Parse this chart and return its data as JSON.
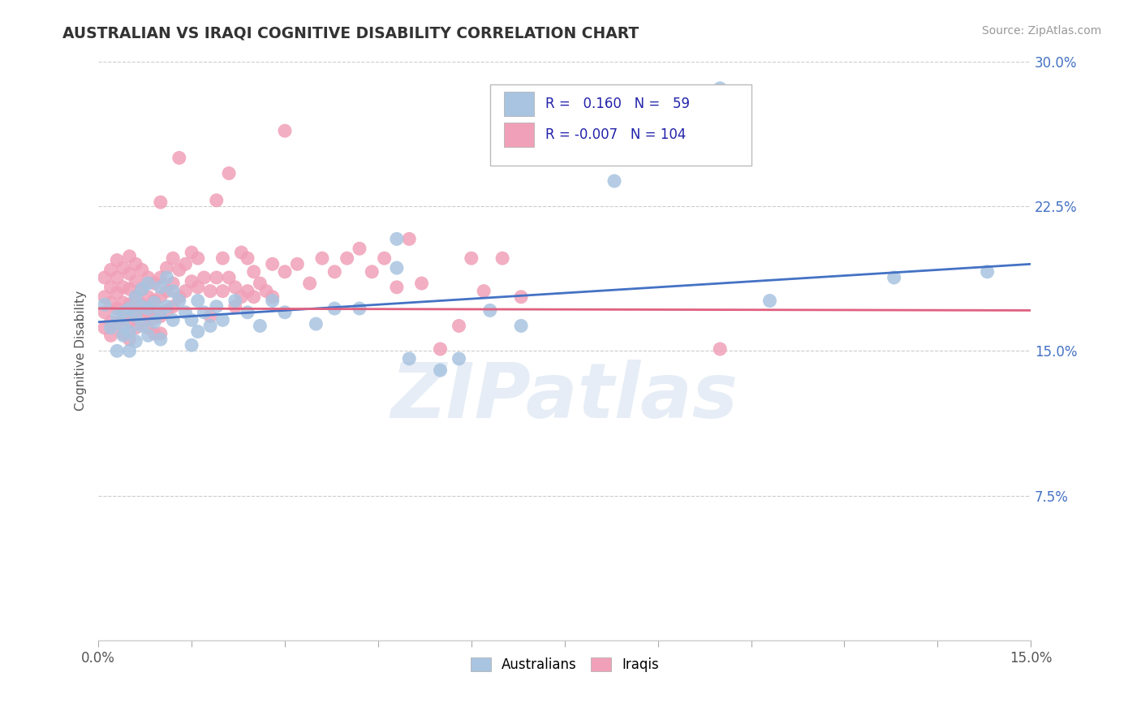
{
  "title": "AUSTRALIAN VS IRAQI COGNITIVE DISABILITY CORRELATION CHART",
  "source": "Source: ZipAtlas.com",
  "ylabel": "Cognitive Disability",
  "x_min": 0.0,
  "x_max": 0.15,
  "y_min": 0.0,
  "y_max": 0.3,
  "australian_color": "#a8c4e0",
  "iraqi_color": "#f0a0b8",
  "australian_line_color": "#4472c4",
  "iraqi_line_color": "#e06080",
  "legend_R_australian": "0.160",
  "legend_N_australian": "59",
  "legend_R_iraqi": "-0.007",
  "legend_N_iraqi": "104",
  "watermark": "ZIPatlas",
  "aus_line_x": [
    0.0,
    0.15
  ],
  "aus_line_y": [
    0.165,
    0.195
  ],
  "iraqi_line_x": [
    0.0,
    0.15
  ],
  "iraqi_line_y": [
    0.172,
    0.171
  ],
  "australian_dots": [
    [
      0.001,
      0.174
    ],
    [
      0.002,
      0.162
    ],
    [
      0.003,
      0.168
    ],
    [
      0.003,
      0.15
    ],
    [
      0.004,
      0.17
    ],
    [
      0.004,
      0.158
    ],
    [
      0.004,
      0.163
    ],
    [
      0.005,
      0.172
    ],
    [
      0.005,
      0.16
    ],
    [
      0.005,
      0.15
    ],
    [
      0.006,
      0.178
    ],
    [
      0.006,
      0.168
    ],
    [
      0.006,
      0.155
    ],
    [
      0.007,
      0.182
    ],
    [
      0.007,
      0.173
    ],
    [
      0.007,
      0.163
    ],
    [
      0.008,
      0.185
    ],
    [
      0.008,
      0.172
    ],
    [
      0.008,
      0.158
    ],
    [
      0.009,
      0.175
    ],
    [
      0.009,
      0.165
    ],
    [
      0.01,
      0.183
    ],
    [
      0.01,
      0.17
    ],
    [
      0.01,
      0.156
    ],
    [
      0.011,
      0.188
    ],
    [
      0.011,
      0.173
    ],
    [
      0.012,
      0.181
    ],
    [
      0.012,
      0.166
    ],
    [
      0.013,
      0.176
    ],
    [
      0.014,
      0.17
    ],
    [
      0.015,
      0.166
    ],
    [
      0.015,
      0.153
    ],
    [
      0.016,
      0.176
    ],
    [
      0.016,
      0.16
    ],
    [
      0.017,
      0.17
    ],
    [
      0.018,
      0.163
    ],
    [
      0.019,
      0.173
    ],
    [
      0.02,
      0.166
    ],
    [
      0.022,
      0.176
    ],
    [
      0.024,
      0.17
    ],
    [
      0.026,
      0.163
    ],
    [
      0.028,
      0.176
    ],
    [
      0.03,
      0.17
    ],
    [
      0.035,
      0.164
    ],
    [
      0.038,
      0.172
    ],
    [
      0.042,
      0.172
    ],
    [
      0.048,
      0.208
    ],
    [
      0.048,
      0.193
    ],
    [
      0.05,
      0.146
    ],
    [
      0.055,
      0.14
    ],
    [
      0.058,
      0.146
    ],
    [
      0.063,
      0.171
    ],
    [
      0.068,
      0.163
    ],
    [
      0.083,
      0.238
    ],
    [
      0.098,
      0.27
    ],
    [
      0.1,
      0.286
    ],
    [
      0.108,
      0.176
    ],
    [
      0.128,
      0.188
    ],
    [
      0.143,
      0.191
    ]
  ],
  "iraqi_dots": [
    [
      0.001,
      0.188
    ],
    [
      0.001,
      0.178
    ],
    [
      0.001,
      0.17
    ],
    [
      0.001,
      0.162
    ],
    [
      0.002,
      0.192
    ],
    [
      0.002,
      0.183
    ],
    [
      0.002,
      0.175
    ],
    [
      0.002,
      0.165
    ],
    [
      0.002,
      0.158
    ],
    [
      0.003,
      0.197
    ],
    [
      0.003,
      0.188
    ],
    [
      0.003,
      0.18
    ],
    [
      0.003,
      0.172
    ],
    [
      0.003,
      0.164
    ],
    [
      0.004,
      0.193
    ],
    [
      0.004,
      0.183
    ],
    [
      0.004,
      0.175
    ],
    [
      0.004,
      0.167
    ],
    [
      0.004,
      0.159
    ],
    [
      0.005,
      0.199
    ],
    [
      0.005,
      0.19
    ],
    [
      0.005,
      0.182
    ],
    [
      0.005,
      0.174
    ],
    [
      0.005,
      0.165
    ],
    [
      0.005,
      0.156
    ],
    [
      0.006,
      0.195
    ],
    [
      0.006,
      0.186
    ],
    [
      0.006,
      0.178
    ],
    [
      0.006,
      0.17
    ],
    [
      0.006,
      0.162
    ],
    [
      0.007,
      0.192
    ],
    [
      0.007,
      0.182
    ],
    [
      0.007,
      0.174
    ],
    [
      0.007,
      0.166
    ],
    [
      0.008,
      0.188
    ],
    [
      0.008,
      0.178
    ],
    [
      0.008,
      0.17
    ],
    [
      0.008,
      0.162
    ],
    [
      0.009,
      0.185
    ],
    [
      0.009,
      0.176
    ],
    [
      0.009,
      0.167
    ],
    [
      0.009,
      0.159
    ],
    [
      0.01,
      0.227
    ],
    [
      0.01,
      0.188
    ],
    [
      0.01,
      0.178
    ],
    [
      0.01,
      0.168
    ],
    [
      0.01,
      0.159
    ],
    [
      0.011,
      0.193
    ],
    [
      0.011,
      0.181
    ],
    [
      0.011,
      0.171
    ],
    [
      0.012,
      0.198
    ],
    [
      0.012,
      0.185
    ],
    [
      0.012,
      0.173
    ],
    [
      0.013,
      0.25
    ],
    [
      0.013,
      0.192
    ],
    [
      0.013,
      0.178
    ],
    [
      0.014,
      0.195
    ],
    [
      0.014,
      0.181
    ],
    [
      0.015,
      0.201
    ],
    [
      0.015,
      0.186
    ],
    [
      0.016,
      0.198
    ],
    [
      0.016,
      0.183
    ],
    [
      0.017,
      0.188
    ],
    [
      0.018,
      0.181
    ],
    [
      0.018,
      0.168
    ],
    [
      0.019,
      0.228
    ],
    [
      0.019,
      0.188
    ],
    [
      0.02,
      0.198
    ],
    [
      0.02,
      0.181
    ],
    [
      0.021,
      0.242
    ],
    [
      0.021,
      0.188
    ],
    [
      0.022,
      0.183
    ],
    [
      0.022,
      0.173
    ],
    [
      0.023,
      0.201
    ],
    [
      0.023,
      0.178
    ],
    [
      0.024,
      0.198
    ],
    [
      0.024,
      0.181
    ],
    [
      0.025,
      0.191
    ],
    [
      0.025,
      0.178
    ],
    [
      0.026,
      0.185
    ],
    [
      0.027,
      0.181
    ],
    [
      0.028,
      0.195
    ],
    [
      0.028,
      0.178
    ],
    [
      0.03,
      0.264
    ],
    [
      0.03,
      0.191
    ],
    [
      0.032,
      0.195
    ],
    [
      0.034,
      0.185
    ],
    [
      0.036,
      0.198
    ],
    [
      0.038,
      0.191
    ],
    [
      0.04,
      0.198
    ],
    [
      0.042,
      0.203
    ],
    [
      0.044,
      0.191
    ],
    [
      0.046,
      0.198
    ],
    [
      0.048,
      0.183
    ],
    [
      0.05,
      0.208
    ],
    [
      0.052,
      0.185
    ],
    [
      0.055,
      0.151
    ],
    [
      0.058,
      0.163
    ],
    [
      0.06,
      0.198
    ],
    [
      0.062,
      0.181
    ],
    [
      0.065,
      0.198
    ],
    [
      0.068,
      0.178
    ],
    [
      0.1,
      0.151
    ]
  ]
}
